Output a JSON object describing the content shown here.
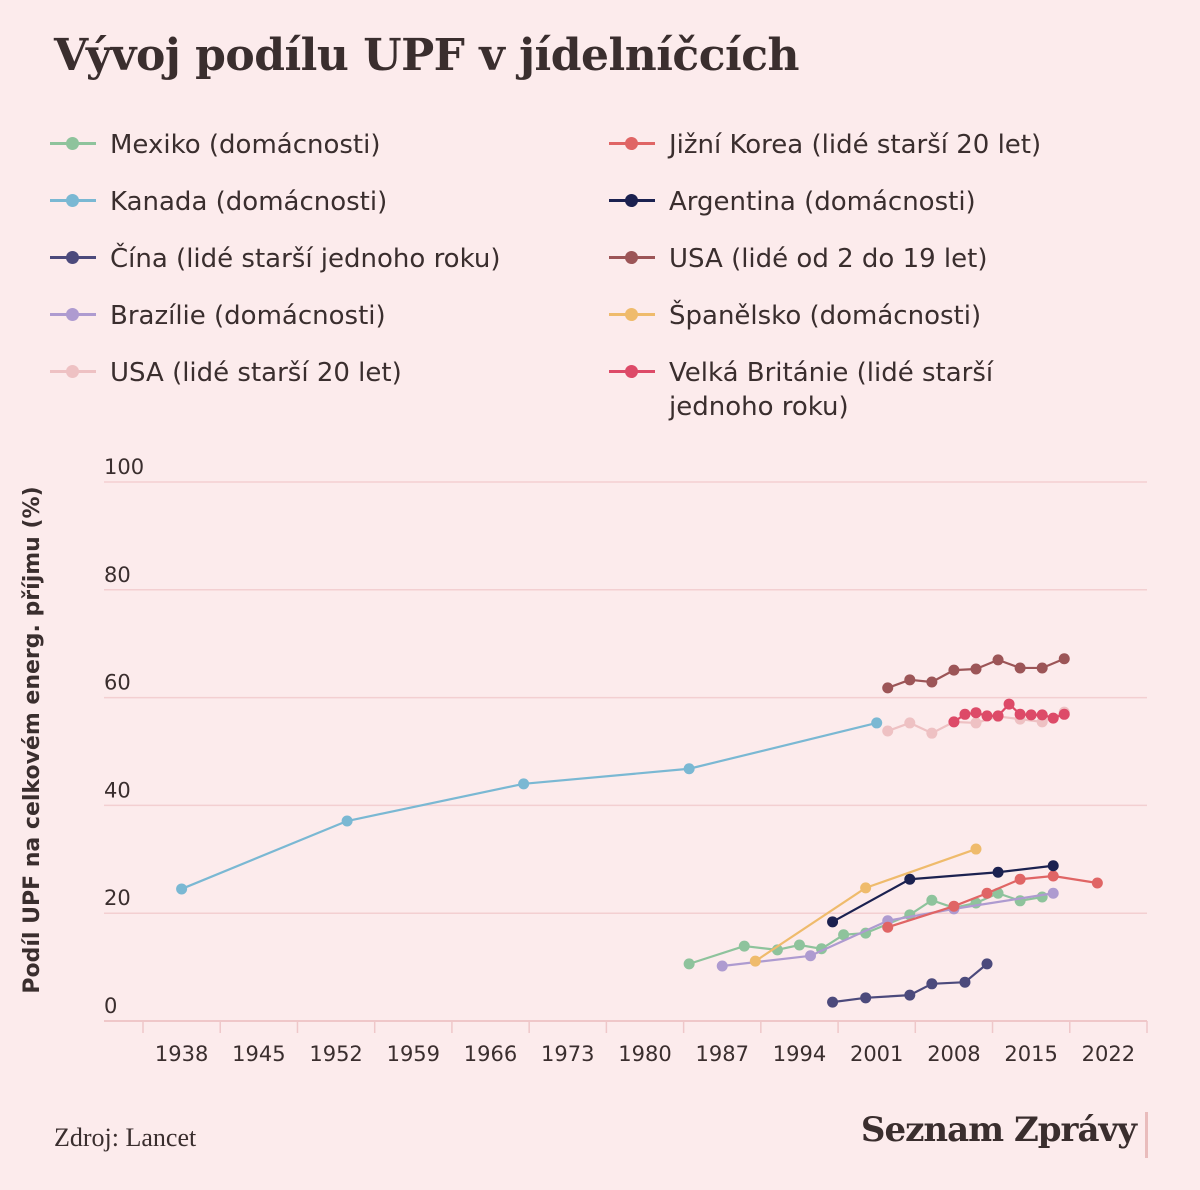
{
  "title": "Vývoj podílu UPF v jídelníčcích",
  "source": "Zdroj: Lancet",
  "brand": "Seznam Zprávy",
  "chart_data": {
    "type": "line",
    "title": "Vývoj podílu UPF v jídelníčcích",
    "xlabel": "",
    "ylabel": "Podíl UPF na celkovém energ. příjmu (%)",
    "ylim": [
      0,
      100
    ],
    "xlim": [
      1934.5,
      2025.5
    ],
    "yticks": [
      0,
      20,
      40,
      60,
      80,
      100
    ],
    "xticks": [
      1938,
      1945,
      1952,
      1959,
      1966,
      1973,
      1980,
      1987,
      1994,
      2001,
      2008,
      2015,
      2022
    ],
    "grid": "horizontal",
    "legend_position": "top",
    "series": [
      {
        "name": "Mexiko (domácnosti)",
        "color": "#8ec39c",
        "x": [
          1984,
          1989,
          1992,
          1994,
          1996,
          1998,
          2000,
          2004,
          2006,
          2008,
          2010,
          2012,
          2014,
          2016
        ],
        "y": [
          10.6,
          13.9,
          13.2,
          14.1,
          13.4,
          16.0,
          16.3,
          19.7,
          22.4,
          21.0,
          21.9,
          23.7,
          22.3,
          23.0
        ]
      },
      {
        "name": "Kanada (domácnosti)",
        "color": "#7ab8d3",
        "x": [
          1938,
          1953,
          1969,
          1984,
          2001
        ],
        "y": [
          24.5,
          37.1,
          44.0,
          46.8,
          55.3
        ]
      },
      {
        "name": "Čína (lidé starší jednoho roku)",
        "color": "#4c4a7c",
        "x": [
          1997,
          2000,
          2004,
          2006,
          2009,
          2011
        ],
        "y": [
          3.5,
          4.3,
          4.8,
          6.9,
          7.2,
          10.6
        ]
      },
      {
        "name": "Brazílie (domácnosti)",
        "color": "#ae9bd0",
        "x": [
          1987,
          1995,
          2002,
          2008,
          2017
        ],
        "y": [
          10.2,
          12.1,
          18.6,
          20.8,
          23.7
        ]
      },
      {
        "name": "USA (lidé starší 20 let)",
        "color": "#eec1c3",
        "x": [
          2002,
          2004,
          2006,
          2008,
          2010,
          2012,
          2014,
          2016,
          2018
        ],
        "y": [
          53.8,
          55.3,
          53.4,
          55.5,
          55.3,
          56.5,
          56.0,
          55.5,
          57.3
        ]
      },
      {
        "name": "Jižní Korea (lidé starší 20 let)",
        "color": "#e06565",
        "x": [
          2002,
          2008,
          2011,
          2014,
          2017,
          2021
        ],
        "y": [
          17.4,
          21.3,
          23.7,
          26.3,
          26.9,
          25.6
        ]
      },
      {
        "name": "Argentina (domácnosti)",
        "color": "#1b2150",
        "x": [
          1997,
          2004,
          2012,
          2017
        ],
        "y": [
          18.4,
          26.3,
          27.6,
          28.8
        ]
      },
      {
        "name": "USA (lidé od 2 do 19 let)",
        "color": "#9c5557",
        "x": [
          2002,
          2004,
          2006,
          2008,
          2010,
          2012,
          2014,
          2016,
          2018
        ],
        "y": [
          61.8,
          63.3,
          62.9,
          65.1,
          65.3,
          67.0,
          65.5,
          65.5,
          67.2
        ]
      },
      {
        "name": "Španělsko (domácnosti)",
        "color": "#efbb6c",
        "x": [
          1990,
          2000,
          2010
        ],
        "y": [
          11.1,
          24.7,
          31.9
        ]
      },
      {
        "name": "Velká Británie (lidé starší jednoho roku)",
        "color": "#dd4a68",
        "x": [
          2008,
          2009,
          2010,
          2011,
          2012,
          2013,
          2014,
          2015,
          2016,
          2017,
          2018
        ],
        "y": [
          55.5,
          56.9,
          57.2,
          56.6,
          56.6,
          58.8,
          56.9,
          56.8,
          56.8,
          56.2,
          56.9
        ]
      }
    ]
  }
}
